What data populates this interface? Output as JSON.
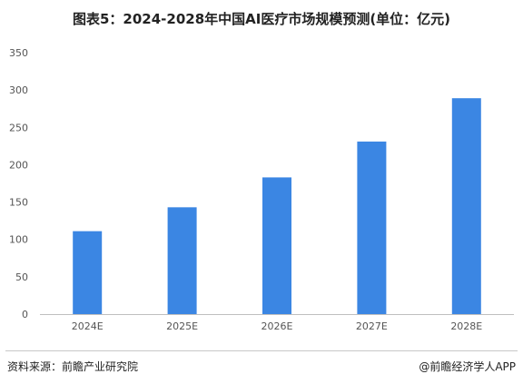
{
  "chart_data": {
    "type": "bar",
    "title": "图表5：2024-2028年中国AI医疗市场规模预测(单位：亿元)",
    "categories": [
      "2024E",
      "2025E",
      "2026E",
      "2027E",
      "2028E"
    ],
    "values": [
      111,
      143,
      183,
      231,
      289
    ],
    "xlabel": "",
    "ylabel": "",
    "ylim": [
      0,
      350
    ],
    "yticks": [
      0,
      50,
      100,
      150,
      200,
      250,
      300,
      350
    ],
    "grid": false,
    "legend": "none",
    "bar_color": "#3b86e3"
  },
  "footer": {
    "source": "资料来源：前瞻产业研究院",
    "credit": "@前瞻经济学人APP"
  }
}
